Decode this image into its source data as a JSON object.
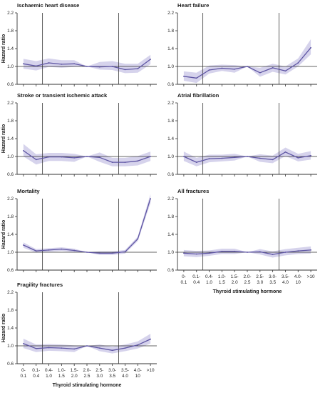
{
  "figure": {
    "xlabel": "Thyroid stimulating hormone",
    "ylabel": "Hazard ratio",
    "categories": [
      [
        "0-",
        "0.1"
      ],
      [
        "0.1-",
        "0.4"
      ],
      [
        "0.4-",
        "1.0"
      ],
      [
        "1.0-",
        "1.5"
      ],
      [
        "1.5-",
        "2.0"
      ],
      [
        "2.0-",
        "2.5"
      ],
      [
        "2.5-",
        "3.0"
      ],
      [
        "3.0-",
        "3.5"
      ],
      [
        "3.5-",
        "4.0"
      ],
      [
        "4.0-",
        "10"
      ],
      [
        ">10"
      ]
    ],
    "yticks": [
      "0.6",
      "1.0",
      "1.4",
      "1.8",
      "2.2"
    ]
  },
  "colors": {
    "line": "#5e55a3",
    "band": "#d6d3ec",
    "axis": "#333333"
  },
  "chart_data": [
    {
      "type": "line",
      "title": "Ischaemic heart disease",
      "ylabel": "Hazard ratio",
      "xlabel": "",
      "ylim": [
        0.6,
        2.2
      ],
      "reference_lines": {
        "x_categories": [
          "0.4-1.0",
          "3.5-4.0"
        ],
        "y": 1.0
      },
      "categories": [
        "0-0.1",
        "0.1-0.4",
        "0.4-1.0",
        "1.0-1.5",
        "1.5-2.0",
        "2.0-2.5",
        "2.5-3.0",
        "3.0-3.5",
        "3.5-4.0",
        "4.0-10",
        ">10"
      ],
      "series": [
        {
          "values": [
            1.06,
            1.01,
            1.08,
            1.05,
            1.06,
            1.0,
            0.99,
            1.0,
            0.93,
            0.95,
            1.16
          ],
          "lower": [
            0.95,
            0.91,
            0.99,
            0.97,
            0.99,
            1.0,
            0.93,
            0.92,
            0.85,
            0.86,
            1.05
          ],
          "upper": [
            1.17,
            1.12,
            1.18,
            1.14,
            1.14,
            1.0,
            1.1,
            1.12,
            1.06,
            1.06,
            1.26
          ]
        }
      ]
    },
    {
      "type": "line",
      "title": "Heart failure",
      "ylabel": "",
      "xlabel": "",
      "ylim": [
        0.6,
        2.2
      ],
      "reference_lines": {
        "x_categories": [
          "0.4-1.0",
          "3.5-4.0"
        ],
        "y": 1.0
      },
      "categories": [
        "0-0.1",
        "0.1-0.4",
        "0.4-1.0",
        "1.0-1.5",
        "1.5-2.0",
        "2.0-2.5",
        "2.5-3.0",
        "3.0-3.5",
        "3.5-4.0",
        "4.0-10",
        ">10"
      ],
      "series": [
        {
          "values": [
            0.78,
            0.74,
            0.92,
            0.96,
            0.94,
            1.0,
            0.86,
            0.97,
            0.9,
            1.08,
            1.42
          ],
          "lower": [
            0.68,
            0.63,
            0.84,
            0.9,
            0.86,
            1.0,
            0.77,
            0.88,
            0.82,
            1.0,
            1.27
          ],
          "upper": [
            0.89,
            0.86,
            1.02,
            1.04,
            1.03,
            1.0,
            0.97,
            1.06,
            1.0,
            1.18,
            1.61
          ]
        }
      ]
    },
    {
      "type": "line",
      "title": "Stroke or transient ischemic attack",
      "ylabel": "Hazard ratio",
      "xlabel": "",
      "ylim": [
        0.6,
        2.2
      ],
      "reference_lines": {
        "x_categories": [
          "0.4-1.0",
          "3.5-4.0"
        ],
        "y": 1.0
      },
      "categories": [
        "0-0.1",
        "0.1-0.4",
        "0.4-1.0",
        "1.0-1.5",
        "1.5-2.0",
        "2.0-2.5",
        "2.5-3.0",
        "3.0-3.5",
        "3.5-4.0",
        "4.0-10",
        ">10"
      ],
      "series": [
        {
          "values": [
            1.13,
            0.93,
            0.99,
            0.99,
            0.97,
            1.0,
            0.98,
            0.87,
            0.87,
            0.9,
            1.0
          ],
          "lower": [
            1.0,
            0.82,
            0.9,
            0.9,
            0.88,
            1.0,
            0.88,
            0.78,
            0.78,
            0.8,
            0.9
          ],
          "upper": [
            1.28,
            1.05,
            1.08,
            1.08,
            1.06,
            1.0,
            1.09,
            0.97,
            0.97,
            1.01,
            1.11
          ]
        }
      ]
    },
    {
      "type": "line",
      "title": "Atrial fibrillation",
      "ylabel": "",
      "xlabel": "",
      "ylim": [
        0.6,
        2.2
      ],
      "reference_lines": {
        "x_categories": [
          "0.4-1.0",
          "3.5-4.0"
        ],
        "y": 1.0
      },
      "categories": [
        "0-0.1",
        "0.1-0.4",
        "0.4-1.0",
        "1.0-1.5",
        "1.5-2.0",
        "2.0-2.5",
        "2.5-3.0",
        "3.0-3.5",
        "3.5-4.0",
        "4.0-10",
        ">10"
      ],
      "series": [
        {
          "values": [
            1.0,
            0.87,
            0.95,
            0.96,
            0.98,
            1.0,
            0.96,
            0.93,
            1.1,
            0.97,
            1.02
          ],
          "lower": [
            0.9,
            0.78,
            0.87,
            0.89,
            0.91,
            1.0,
            0.88,
            0.85,
            1.01,
            0.89,
            0.93
          ],
          "upper": [
            1.11,
            0.97,
            1.04,
            1.04,
            1.06,
            1.0,
            1.05,
            1.02,
            1.2,
            1.06,
            1.12
          ]
        }
      ]
    },
    {
      "type": "line",
      "title": "Mortality",
      "ylabel": "Hazard ratio",
      "xlabel": "",
      "ylim": [
        0.6,
        2.2
      ],
      "reference_lines": {
        "x_categories": [
          "0.4-1.0",
          "3.5-4.0"
        ],
        "y": 1.0
      },
      "categories": [
        "0-0.1",
        "0.1-0.4",
        "0.4-1.0",
        "1.0-1.5",
        "1.5-2.0",
        "2.0-2.5",
        "2.5-3.0",
        "3.0-3.5",
        "3.5-4.0",
        "4.0-10",
        ">10"
      ],
      "series": [
        {
          "values": [
            1.16,
            1.03,
            1.05,
            1.07,
            1.04,
            1.0,
            0.98,
            0.98,
            1.01,
            1.3,
            2.2
          ],
          "lower": [
            1.1,
            0.99,
            1.01,
            1.03,
            1.0,
            1.0,
            0.94,
            0.94,
            0.97,
            1.25,
            2.1
          ],
          "upper": [
            1.22,
            1.07,
            1.09,
            1.11,
            1.08,
            1.0,
            1.02,
            1.02,
            1.05,
            1.35,
            2.3
          ]
        }
      ]
    },
    {
      "type": "line",
      "title": "All fractures",
      "ylabel": "",
      "xlabel": "Thyroid stimulating hormone",
      "ylim": [
        0.6,
        2.2
      ],
      "reference_lines": {
        "x_categories": [
          "0.4-1.0",
          "3.5-4.0"
        ],
        "y": 1.0
      },
      "categories": [
        "0-0.1",
        "0.1-0.4",
        "0.4-1.0",
        "1.0-1.5",
        "1.5-2.0",
        "2.0-2.5",
        "2.5-3.0",
        "3.0-3.5",
        "3.5-4.0",
        "4.0-10",
        ">10"
      ],
      "series": [
        {
          "values": [
            0.98,
            0.96,
            0.98,
            1.02,
            1.02,
            1.0,
            1.01,
            0.95,
            1.0,
            1.03,
            1.05
          ],
          "lower": [
            0.91,
            0.89,
            0.92,
            0.96,
            0.96,
            1.0,
            0.95,
            0.88,
            0.93,
            0.96,
            0.97
          ],
          "upper": [
            1.05,
            1.03,
            1.04,
            1.08,
            1.08,
            1.0,
            1.07,
            1.02,
            1.07,
            1.1,
            1.13
          ]
        }
      ]
    },
    {
      "type": "line",
      "title": "Fragility fractures",
      "ylabel": "Hazard ratio",
      "xlabel": "Thyroid stimulating hormone",
      "ylim": [
        0.6,
        2.2
      ],
      "reference_lines": {
        "x_categories": [
          "0.4-1.0",
          "3.5-4.0"
        ],
        "y": 1.0
      },
      "categories": [
        "0-0.1",
        "0.1-0.4",
        "0.4-1.0",
        "1.0-1.5",
        "1.5-2.0",
        "2.0-2.5",
        "2.5-3.0",
        "3.0-3.5",
        "3.5-4.0",
        "4.0-10",
        ">10"
      ],
      "series": [
        {
          "values": [
            1.05,
            0.94,
            0.96,
            0.95,
            0.93,
            1.0,
            0.95,
            0.9,
            0.95,
            1.02,
            1.15
          ],
          "lower": [
            0.95,
            0.86,
            0.89,
            0.88,
            0.86,
            1.0,
            0.88,
            0.83,
            0.88,
            0.94,
            1.05
          ],
          "upper": [
            1.16,
            1.03,
            1.04,
            1.03,
            1.01,
            1.0,
            1.03,
            0.98,
            1.03,
            1.1,
            1.27
          ]
        }
      ]
    }
  ]
}
